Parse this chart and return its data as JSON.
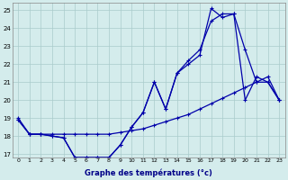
{
  "title": "Graphe des températures (°c)",
  "background_color": "#d4ecec",
  "grid_color": "#aacccc",
  "line_color": "#0000aa",
  "x_min": 0,
  "x_max": 23,
  "y_min": 17,
  "y_max": 25,
  "x_ticks": [
    0,
    1,
    2,
    3,
    4,
    5,
    6,
    7,
    8,
    9,
    10,
    11,
    12,
    13,
    14,
    15,
    16,
    17,
    18,
    19,
    20,
    21,
    22,
    23
  ],
  "y_ticks": [
    17,
    18,
    19,
    20,
    21,
    22,
    23,
    24,
    25
  ],
  "lineA_x": [
    0,
    1,
    2,
    3,
    4,
    5,
    6,
    7,
    8,
    9,
    10,
    11,
    12,
    13,
    14,
    15,
    16,
    17,
    18,
    19,
    20,
    21,
    22,
    23
  ],
  "lineA_y": [
    19.0,
    18.1,
    18.1,
    18.1,
    18.1,
    18.1,
    18.1,
    18.1,
    18.1,
    18.2,
    18.3,
    18.4,
    18.6,
    18.8,
    19.0,
    19.2,
    19.5,
    19.8,
    20.1,
    20.4,
    20.7,
    21.0,
    21.3,
    20.0
  ],
  "lineB_x": [
    0,
    1,
    2,
    3,
    4,
    5,
    6,
    7,
    8,
    9,
    10,
    11,
    12,
    13,
    14,
    15,
    16,
    17,
    18,
    19,
    20,
    21,
    22,
    23
  ],
  "lineB_y": [
    18.9,
    18.1,
    18.1,
    18.0,
    17.9,
    16.8,
    16.8,
    16.8,
    16.8,
    17.5,
    18.5,
    19.3,
    21.0,
    19.5,
    21.5,
    22.0,
    22.5,
    25.1,
    24.6,
    24.8,
    22.8,
    21.0,
    21.0,
    20.0
  ],
  "lineC_x": [
    0,
    1,
    2,
    3,
    4,
    5,
    6,
    7,
    8,
    9,
    10,
    11,
    12,
    13,
    14,
    15,
    16,
    17,
    18,
    19,
    20,
    21,
    22,
    23
  ],
  "lineC_y": [
    18.9,
    18.1,
    18.1,
    18.0,
    17.9,
    16.8,
    16.8,
    16.8,
    16.8,
    17.5,
    18.5,
    19.3,
    21.0,
    19.5,
    21.5,
    22.2,
    22.8,
    24.4,
    24.8,
    24.8,
    20.0,
    21.3,
    21.0,
    20.0
  ]
}
